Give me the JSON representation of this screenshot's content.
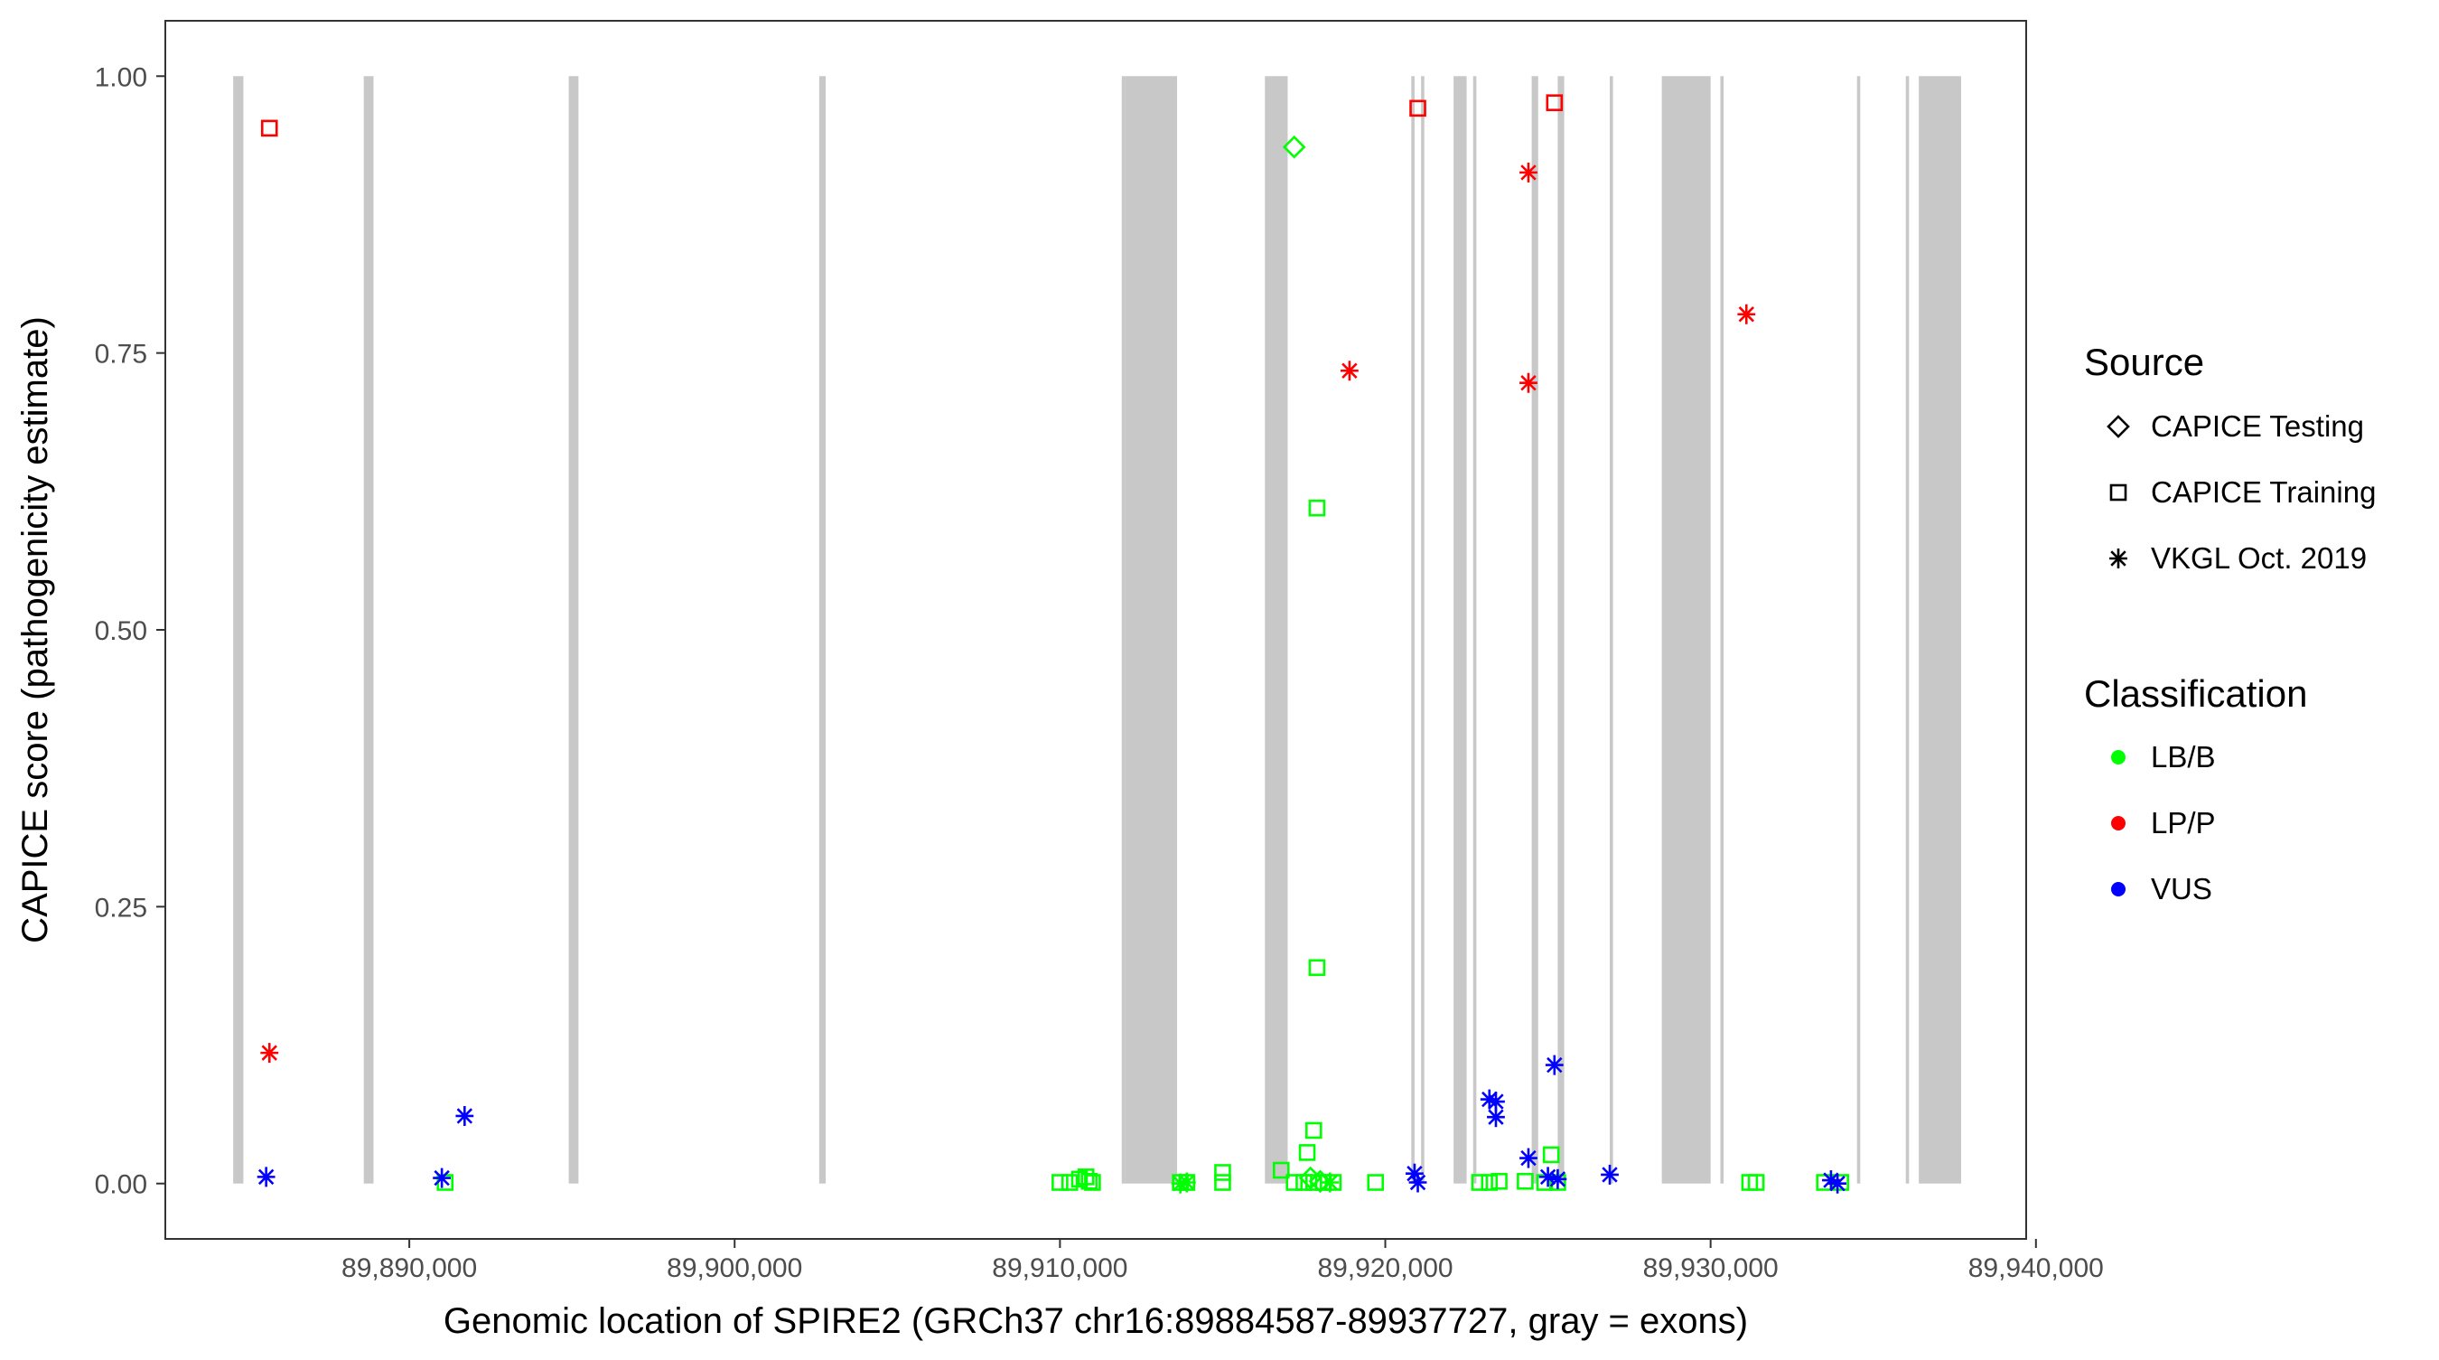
{
  "chart_data": {
    "type": "scatter",
    "title": "",
    "xlabel": "Genomic location of SPIRE2 (GRCh37 chr16:89884587-89937727, gray = exons)",
    "ylabel": "CAPICE score (pathogenicity estimate)",
    "xlim": [
      89882500,
      89939700
    ],
    "ylim": [
      -0.05,
      1.05
    ],
    "x_ticks": [
      89890000,
      89900000,
      89910000,
      89920000,
      89930000,
      89940000
    ],
    "x_tick_labels": [
      "89,890,000",
      "89,900,000",
      "89,910,000",
      "89,920,000",
      "89,930,000",
      "89,940,000"
    ],
    "y_ticks": [
      0,
      0.25,
      0.5,
      0.75,
      1
    ],
    "y_tick_labels": [
      "0.00",
      "0.25",
      "0.50",
      "0.75",
      "1.00"
    ],
    "grid": false,
    "legend_position": "right",
    "exon_color": "#c8c8c8",
    "exons": [
      [
        89884587,
        89884900
      ],
      [
        89888600,
        89888900
      ],
      [
        89894900,
        89895200
      ],
      [
        89902600,
        89902800
      ],
      [
        89911900,
        89912000
      ],
      [
        89912000,
        89913600
      ],
      [
        89916300,
        89917000
      ],
      [
        89920800,
        89920900
      ],
      [
        89921100,
        89921200
      ],
      [
        89922100,
        89922500
      ],
      [
        89922700,
        89922800
      ],
      [
        89924500,
        89924700
      ],
      [
        89925300,
        89925500
      ],
      [
        89926900,
        89927000
      ],
      [
        89928500,
        89930000
      ],
      [
        89930300,
        89930400
      ],
      [
        89934500,
        89934600
      ],
      [
        89936000,
        89936100
      ],
      [
        89936400,
        89937700
      ]
    ],
    "legends": [
      {
        "title": "Source",
        "type": "shape",
        "items": [
          {
            "label": "CAPICE Testing",
            "shape": "diamond"
          },
          {
            "label": "CAPICE Training",
            "shape": "square"
          },
          {
            "label": "VKGL Oct. 2019",
            "shape": "asterisk"
          }
        ]
      },
      {
        "title": "Classification",
        "type": "color",
        "items": [
          {
            "label": "LB/B",
            "color": "#00ff00"
          },
          {
            "label": "LP/P",
            "color": "#ff0000"
          },
          {
            "label": "VUS",
            "color": "#0000ff"
          }
        ]
      }
    ],
    "series": [
      {
        "classification": "LP/P",
        "source": "CAPICE Training",
        "shape": "square",
        "color": "#ff0000",
        "points": [
          [
            89885700,
            0.953
          ],
          [
            89921000,
            0.971
          ],
          [
            89925200,
            0.976
          ]
        ]
      },
      {
        "classification": "LP/P",
        "source": "VKGL Oct. 2019",
        "shape": "asterisk",
        "color": "#ff0000",
        "points": [
          [
            89885700,
            0.118
          ],
          [
            89918900,
            0.734
          ],
          [
            89924400,
            0.913
          ],
          [
            89924400,
            0.723
          ],
          [
            89931100,
            0.785
          ]
        ]
      },
      {
        "classification": "LB/B",
        "source": "CAPICE Testing",
        "shape": "diamond",
        "color": "#00ff00",
        "points": [
          [
            89917200,
            0.936
          ],
          [
            89917700,
            0.005
          ],
          [
            89918000,
            0.002
          ]
        ]
      },
      {
        "classification": "LB/B",
        "source": "CAPICE Training",
        "shape": "square",
        "color": "#00ff00",
        "points": [
          [
            89917900,
            0.61
          ],
          [
            89917900,
            0.195
          ],
          [
            89917800,
            0.048
          ],
          [
            89917600,
            0.028
          ],
          [
            89916800,
            0.012
          ],
          [
            89915000,
            0.01
          ],
          [
            89925100,
            0.026
          ],
          [
            89891100,
            0.001
          ],
          [
            89910000,
            0.001
          ],
          [
            89910300,
            0.001
          ],
          [
            89910600,
            0.004
          ],
          [
            89910900,
            0.002
          ],
          [
            89910800,
            0.006
          ],
          [
            89911000,
            0.001
          ],
          [
            89913700,
            0.001
          ],
          [
            89913900,
            0.001
          ],
          [
            89915000,
            0.001
          ],
          [
            89917200,
            0.001
          ],
          [
            89917500,
            0.001
          ],
          [
            89917800,
            0.001
          ],
          [
            89918100,
            0.001
          ],
          [
            89918400,
            0.001
          ],
          [
            89919700,
            0.001
          ],
          [
            89922900,
            0.001
          ],
          [
            89923200,
            0.001
          ],
          [
            89923500,
            0.002
          ],
          [
            89924300,
            0.002
          ],
          [
            89924900,
            0.001
          ],
          [
            89925300,
            0.001
          ],
          [
            89931200,
            0.001
          ],
          [
            89931400,
            0.001
          ],
          [
            89933500,
            0.001
          ],
          [
            89934000,
            0.001
          ]
        ]
      },
      {
        "classification": "LB/B",
        "source": "VKGL Oct. 2019",
        "shape": "asterisk",
        "color": "#00ff00",
        "points": [
          [
            89913700,
            0.0
          ],
          [
            89913900,
            0.001
          ],
          [
            89918300,
            0.001
          ]
        ]
      },
      {
        "classification": "VUS",
        "source": "VKGL Oct. 2019",
        "shape": "asterisk",
        "color": "#0000ff",
        "points": [
          [
            89885600,
            0.006
          ],
          [
            89891000,
            0.005
          ],
          [
            89891700,
            0.061
          ],
          [
            89920900,
            0.009
          ],
          [
            89921000,
            0.001
          ],
          [
            89923200,
            0.076
          ],
          [
            89923400,
            0.074
          ],
          [
            89923400,
            0.06
          ],
          [
            89924400,
            0.023
          ],
          [
            89925000,
            0.006
          ],
          [
            89925200,
            0.107
          ],
          [
            89925300,
            0.004
          ],
          [
            89926900,
            0.008
          ],
          [
            89933700,
            0.003
          ],
          [
            89933900,
            0.0
          ]
        ]
      }
    ]
  }
}
